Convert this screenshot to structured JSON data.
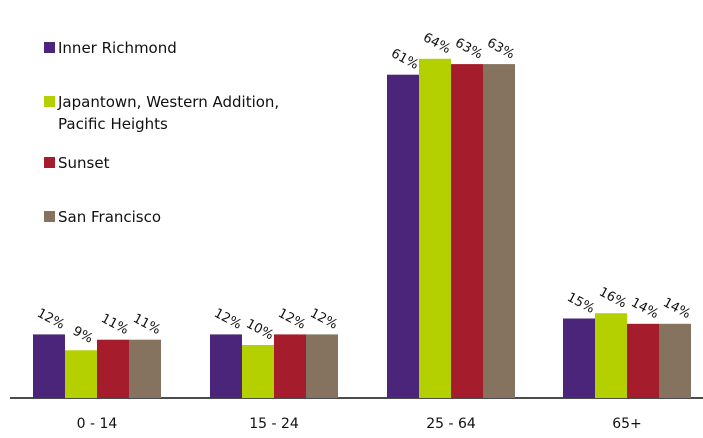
{
  "chart_data": {
    "type": "bar",
    "categories": [
      "0 - 14",
      "15 - 24",
      "25 - 64",
      "65+"
    ],
    "series": [
      {
        "name": "Inner Richmond",
        "color": "#4b2579",
        "values": [
          12,
          12,
          61,
          15
        ]
      },
      {
        "name": "Japantown, Western Addition, Pacific Heights",
        "color": "#b5d000",
        "values": [
          9,
          10,
          64,
          16
        ]
      },
      {
        "name": "Sunset",
        "color": "#a51d2d",
        "values": [
          11,
          12,
          63,
          14
        ]
      },
      {
        "name": "San Francisco",
        "color": "#85735f",
        "values": [
          11,
          12,
          63,
          14
        ]
      }
    ],
    "data_labels": [
      [
        "12%",
        "12%",
        "61%",
        "15%"
      ],
      [
        "9%",
        "10%",
        "64%",
        "16%"
      ],
      [
        "11%",
        "12%",
        "63%",
        "14%"
      ],
      [
        "11%",
        "12%",
        "63%",
        "14%"
      ]
    ],
    "ylim": [
      0,
      70
    ],
    "grid": false,
    "legend_position": "top-left",
    "legend_lines": [
      [
        "Inner Richmond"
      ],
      [
        "Japantown, Western Addition,",
        "Pacific Heights"
      ],
      [
        "Sunset"
      ],
      [
        "San Francisco"
      ]
    ]
  }
}
